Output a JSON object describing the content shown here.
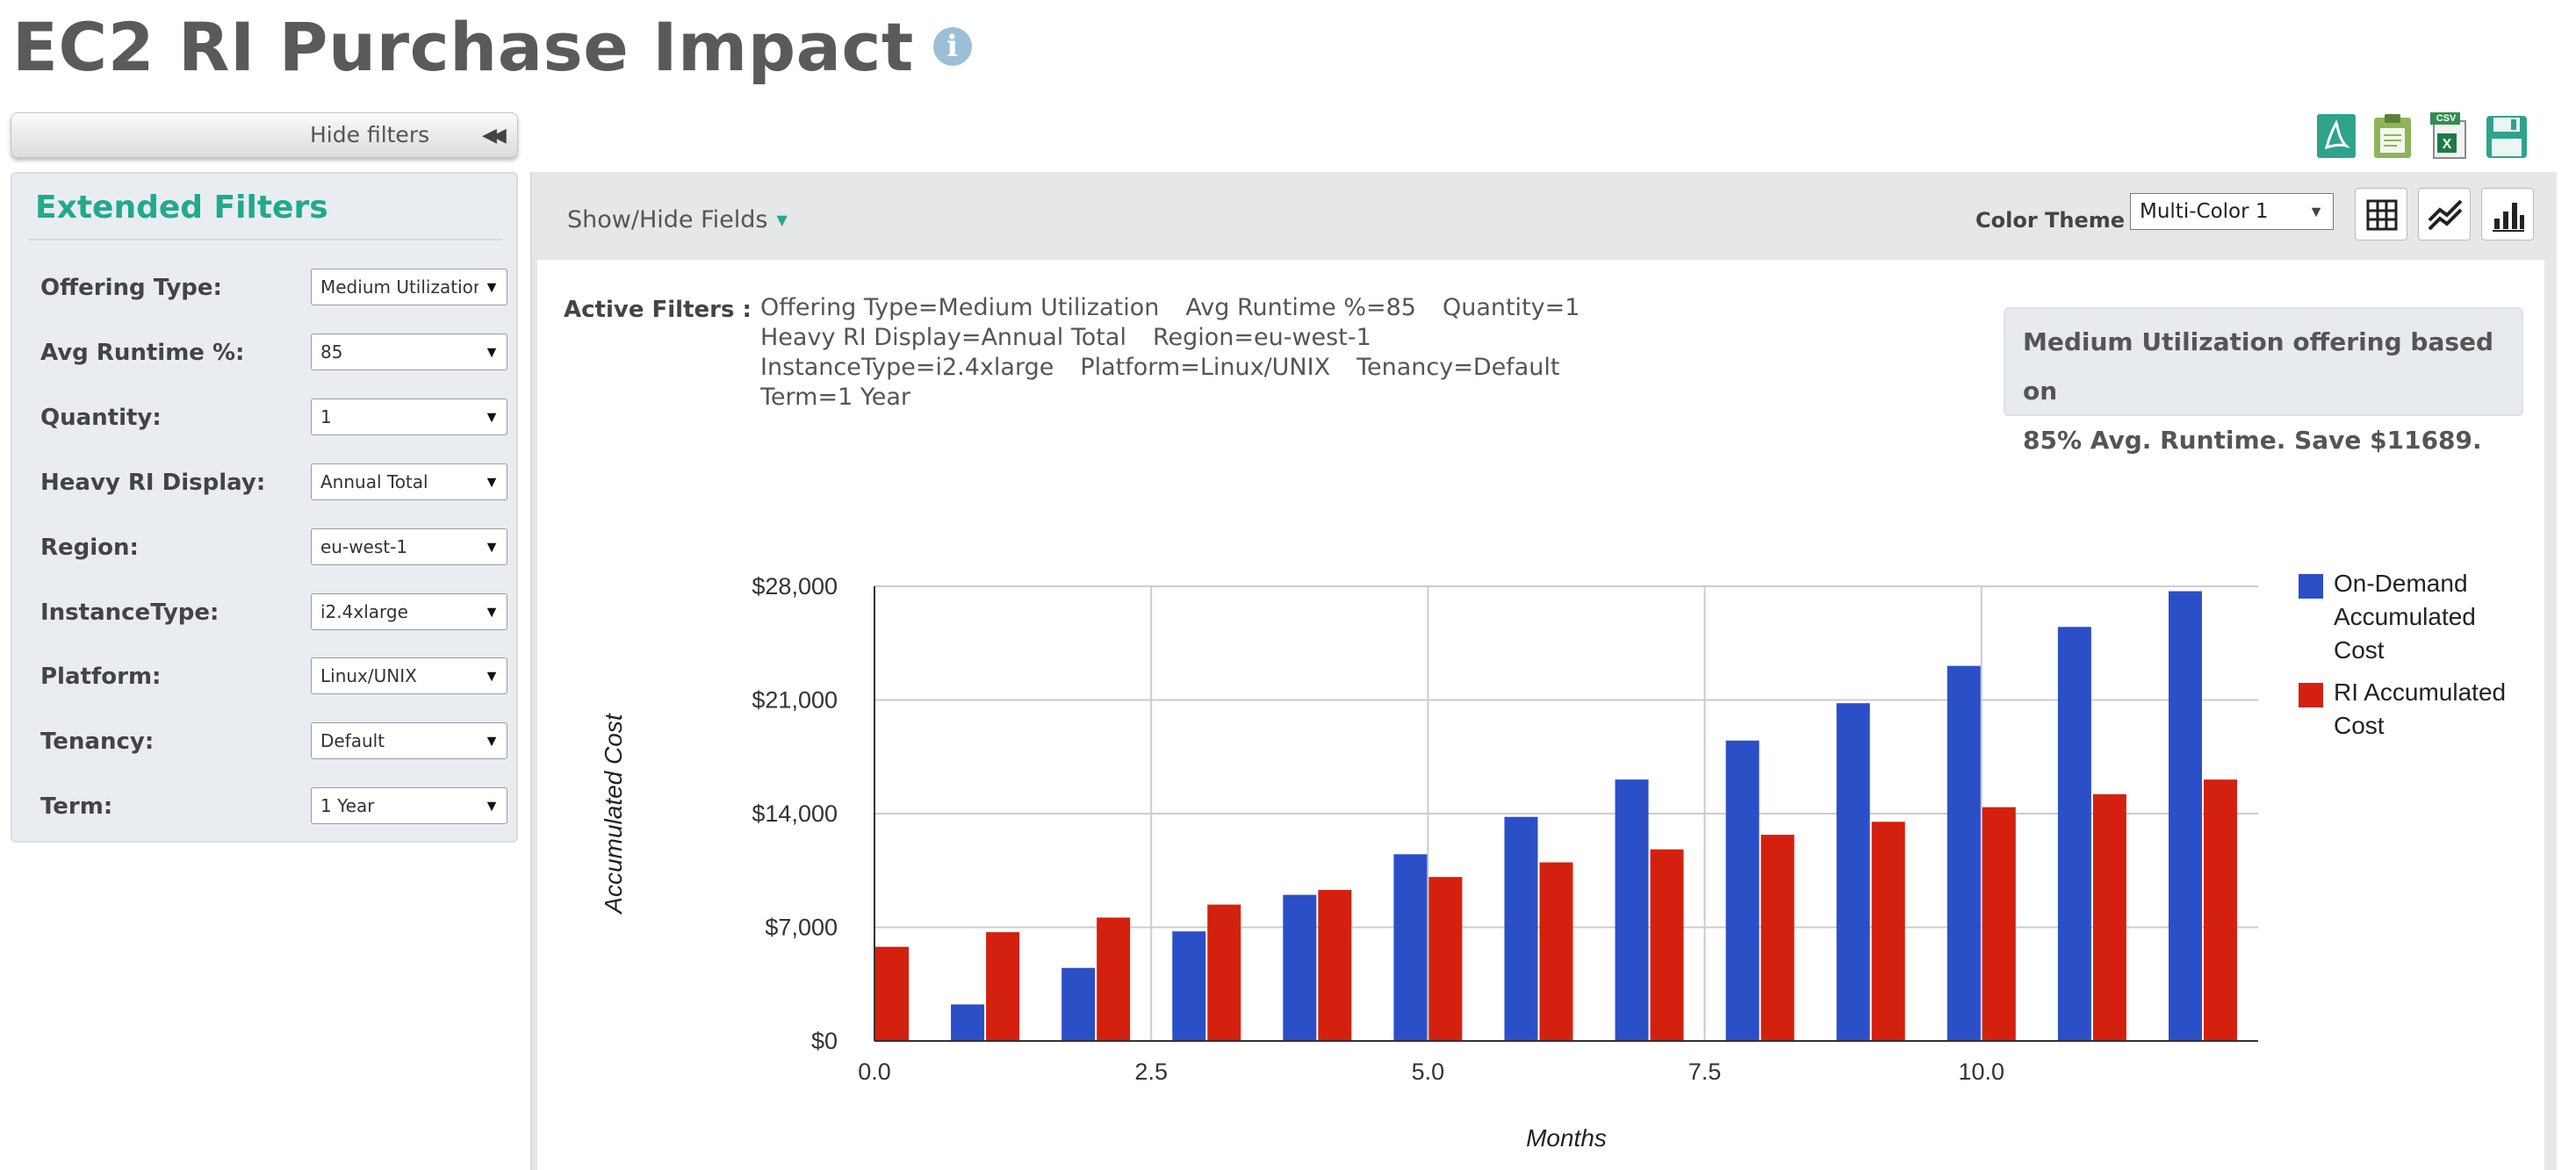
{
  "page": {
    "title": "EC2 RI Purchase Impact",
    "info_icon": "info-icon"
  },
  "sidebar": {
    "hide_filters_label": "Hide filters",
    "hide_filters_icon": "◀◀",
    "heading": "Extended Filters",
    "filters": [
      {
        "label": "Offering Type:",
        "value": "Medium Utilization"
      },
      {
        "label": "Avg Runtime %:",
        "value": "85"
      },
      {
        "label": "Quantity:",
        "value": "1"
      },
      {
        "label": "Heavy RI Display:",
        "value": "Annual Total"
      },
      {
        "label": "Region:",
        "value": "eu-west-1"
      },
      {
        "label": "InstanceType:",
        "value": "i2.4xlarge"
      },
      {
        "label": "Platform:",
        "value": "Linux/UNIX"
      },
      {
        "label": "Tenancy:",
        "value": "Default"
      },
      {
        "label": "Term:",
        "value": "1 Year"
      }
    ]
  },
  "export": {
    "icons": [
      "pdf-export-icon",
      "clipboard-export-icon",
      "csv-export-icon",
      "save-icon"
    ],
    "csv_badge": "CSV"
  },
  "toolbar": {
    "show_hide_label": "Show/Hide Fields",
    "color_theme_label": "Color Theme",
    "color_theme_value": "Multi-Color 1",
    "views": [
      "table-view-icon",
      "line-chart-icon",
      "bar-chart-icon"
    ]
  },
  "active_filters": {
    "label": "Active Filters :",
    "lines": [
      [
        "Offering Type=Medium Utilization",
        "Avg Runtime %=85",
        "Quantity=1"
      ],
      [
        "Heavy RI Display=Annual Total",
        "Region=eu-west-1"
      ],
      [
        "InstanceType=i2.4xlarge",
        "Platform=Linux/UNIX",
        "Tenancy=Default"
      ],
      [
        "Term=1 Year"
      ]
    ]
  },
  "savings": {
    "line1": "Medium Utilization offering based on",
    "line2": "85% Avg. Runtime. Save $11689."
  },
  "chart_data": {
    "type": "bar",
    "xlabel": "Months",
    "ylabel": "Accumulated Cost",
    "x": [
      0,
      1,
      2,
      3,
      4,
      5,
      6,
      7,
      8,
      9,
      10,
      11,
      12
    ],
    "x_ticks": [
      0,
      2.5,
      5,
      7.5,
      10
    ],
    "x_tick_labels": [
      "0.0",
      "2.5",
      "5.0",
      "7.5",
      "10.0"
    ],
    "xlim": [
      0,
      12.5
    ],
    "ylim": [
      0,
      28000
    ],
    "y_ticks": [
      0,
      7000,
      14000,
      21000,
      28000
    ],
    "y_tick_labels": [
      "$0",
      "$7,000",
      "$14,000",
      "$21,000",
      "$28,000"
    ],
    "grid": true,
    "legend_position": "right",
    "series": [
      {
        "name": "On-Demand Accumulated Cost",
        "legend_lines": [
          "On-Demand",
          "Accumulated",
          "Cost"
        ],
        "color": "#2b4fc7",
        "values": [
          0,
          2250,
          4500,
          6750,
          9000,
          11500,
          13800,
          16100,
          18500,
          20800,
          23100,
          25500,
          27700
        ]
      },
      {
        "name": "RI Accumulated Cost",
        "legend_lines": [
          "RI Accumulated",
          "Cost"
        ],
        "color": "#d4210f",
        "values": [
          5800,
          6700,
          7600,
          8400,
          9300,
          10100,
          11000,
          11800,
          12700,
          13500,
          14400,
          15200,
          16100
        ]
      }
    ]
  }
}
